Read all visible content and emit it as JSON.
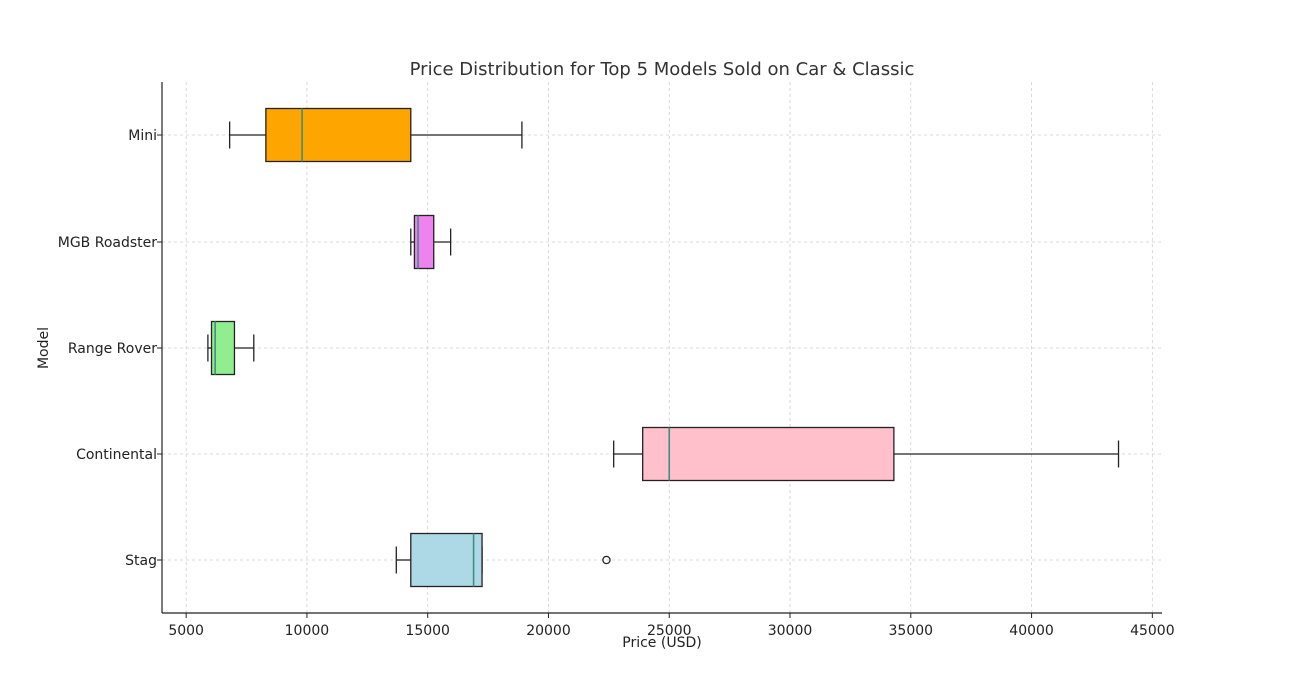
{
  "chart_data": {
    "type": "boxplot",
    "orientation": "horizontal",
    "title": "Price Distribution for Top 5 Models Sold on Car & Classic",
    "xlabel": "Price (USD)",
    "ylabel": "Model",
    "xlim": [
      4000,
      45400
    ],
    "x_ticks": [
      5000,
      10000,
      15000,
      20000,
      25000,
      30000,
      35000,
      40000,
      45000
    ],
    "x_tick_labels": [
      "5000",
      "10000",
      "15000",
      "20000",
      "25000",
      "30000",
      "35000",
      "40000",
      "45000"
    ],
    "grid": true,
    "categories": [
      "Mini",
      "MGB Roadster",
      "Range Rover",
      "Continental",
      "Stag"
    ],
    "series": [
      {
        "category": "Mini",
        "whisker_low": 6800,
        "q1": 8300,
        "median": 9800,
        "q3": 14300,
        "whisker_high": 18900,
        "outliers": [],
        "color": "#FFA500"
      },
      {
        "category": "MGB Roadster",
        "whisker_low": 14300,
        "q1": 14450,
        "median": 14600,
        "q3": 15250,
        "whisker_high": 15950,
        "outliers": [],
        "color": "#EE82EE"
      },
      {
        "category": "Range Rover",
        "whisker_low": 5900,
        "q1": 6050,
        "median": 6200,
        "q3": 7000,
        "whisker_high": 7800,
        "outliers": [],
        "color": "#90EE90"
      },
      {
        "category": "Continental",
        "whisker_low": 22700,
        "q1": 23900,
        "median": 25000,
        "q3": 34300,
        "whisker_high": 43600,
        "outliers": [],
        "color": "#FFC0CB"
      },
      {
        "category": "Stag",
        "whisker_low": 13700,
        "q1": 14300,
        "median": 16900,
        "q3": 17250,
        "whisker_high": 17250,
        "outliers": [
          22400
        ],
        "color": "#ADD8E6"
      }
    ]
  }
}
